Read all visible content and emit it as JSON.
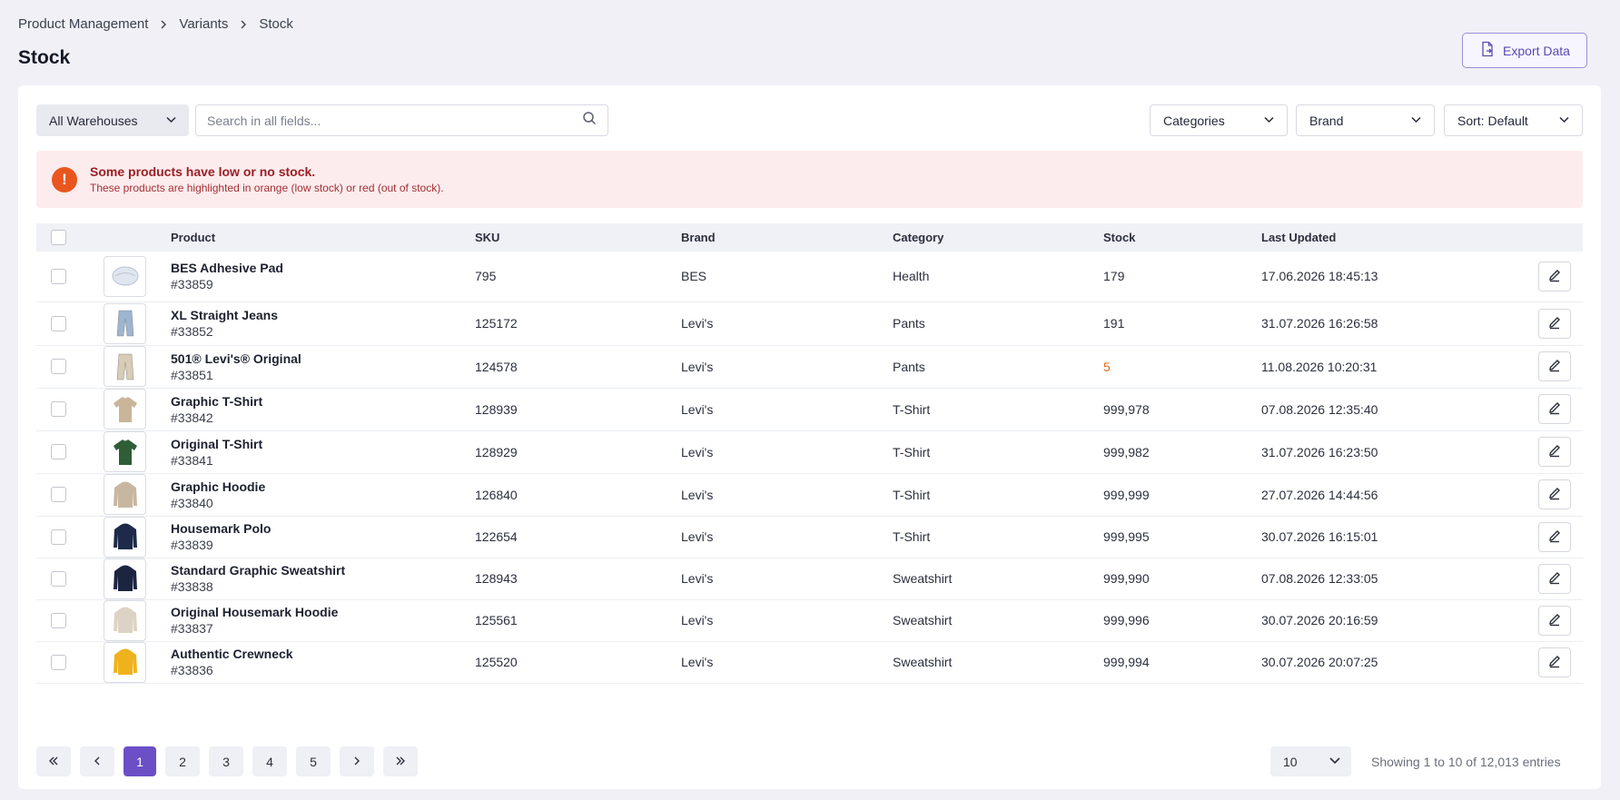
{
  "breadcrumb": [
    "Product Management",
    "Variants",
    "Stock"
  ],
  "page_title": "Stock",
  "export_label": "Export Data",
  "toolbar": {
    "warehouse": "All Warehouses",
    "search_placeholder": "Search in all fields...",
    "categories": "Categories",
    "brand": "Brand",
    "sort": "Sort: Default"
  },
  "alert": {
    "icon": "!",
    "title": "Some products have low or no stock.",
    "message": "These products are highlighted in orange (low stock) or red (out of stock)."
  },
  "table": {
    "columns": [
      "Product",
      "SKU",
      "Brand",
      "Category",
      "Stock",
      "Last Updated"
    ],
    "rows": [
      {
        "name": "BES Adhesive Pad",
        "id": "#33859",
        "sku": "795",
        "brand": "BES",
        "category": "Health",
        "stock": "179",
        "updated": "17.06.2026 18:45:13",
        "thumb": "pad",
        "color": "#dfe6ef"
      },
      {
        "name": "XL Straight Jeans",
        "id": "#33852",
        "sku": "125172",
        "brand": "Levi's",
        "category": "Pants",
        "stock": "191",
        "updated": "31.07.2026 16:26:58",
        "thumb": "pants",
        "color": "#9db5cf"
      },
      {
        "name": "501® Levi's® Original",
        "id": "#33851",
        "sku": "124578",
        "brand": "Levi's",
        "category": "Pants",
        "stock": "5",
        "updated": "11.08.2026 10:20:31",
        "thumb": "pants",
        "color": "#d8ccb6",
        "low": true
      },
      {
        "name": "Graphic T-Shirt",
        "id": "#33842",
        "sku": "128939",
        "brand": "Levi's",
        "category": "T-Shirt",
        "stock": "999,978",
        "updated": "07.08.2026 12:35:40",
        "thumb": "tshirt",
        "color": "#c9b59a"
      },
      {
        "name": "Original T-Shirt",
        "id": "#33841",
        "sku": "128929",
        "brand": "Levi's",
        "category": "T-Shirt",
        "stock": "999,982",
        "updated": "31.07.2026 16:23:50",
        "thumb": "tshirt",
        "color": "#2f5e36"
      },
      {
        "name": "Graphic Hoodie",
        "id": "#33840",
        "sku": "126840",
        "brand": "Levi's",
        "category": "T-Shirt",
        "stock": "999,999",
        "updated": "27.07.2026 14:44:56",
        "thumb": "hoodie",
        "color": "#c8b7a0"
      },
      {
        "name": "Housemark Polo",
        "id": "#33839",
        "sku": "122654",
        "brand": "Levi's",
        "category": "T-Shirt",
        "stock": "999,995",
        "updated": "30.07.2026 16:15:01",
        "thumb": "hoodie",
        "color": "#1e2a4a"
      },
      {
        "name": "Standard Graphic Sweatshirt",
        "id": "#33838",
        "sku": "128943",
        "brand": "Levi's",
        "category": "Sweatshirt",
        "stock": "999,990",
        "updated": "07.08.2026 12:33:05",
        "thumb": "hoodie",
        "color": "#1c2540"
      },
      {
        "name": "Original Housemark Hoodie",
        "id": "#33837",
        "sku": "125561",
        "brand": "Levi's",
        "category": "Sweatshirt",
        "stock": "999,996",
        "updated": "30.07.2026 20:16:59",
        "thumb": "hoodie",
        "color": "#ddd3c4"
      },
      {
        "name": "Authentic Crewneck",
        "id": "#33836",
        "sku": "125520",
        "brand": "Levi's",
        "category": "Sweatshirt",
        "stock": "999,994",
        "updated": "30.07.2026 20:07:25",
        "thumb": "hoodie",
        "color": "#f0b21c"
      }
    ]
  },
  "pagination": {
    "pages": [
      "1",
      "2",
      "3",
      "4",
      "5"
    ],
    "current": "1",
    "per_page": "10",
    "summary": "Showing 1 to 10 of 12,013 entries"
  },
  "colors": {
    "accent": "#6a4fc7",
    "alert_bg": "#fdeced",
    "alert_icon": "#e8561e",
    "low_stock": "#e06a1a"
  }
}
